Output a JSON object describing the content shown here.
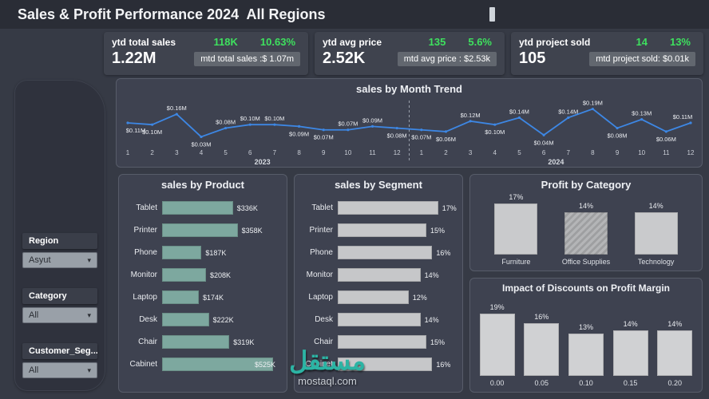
{
  "icons": {
    "chevron_down": "▾"
  },
  "header": {
    "title": "Sales & Profit Performance 2024  All Regions",
    "years": [
      "2023",
      "2024"
    ]
  },
  "kpis": [
    {
      "title": "ytd total sales",
      "delta_value": "118K",
      "delta_pct": "10.63%",
      "main": "1.22M",
      "mtd": "mtd total sales :$ 1.07m"
    },
    {
      "title": "ytd avg price",
      "delta_value": "135",
      "delta_pct": "5.6%",
      "main": "2.52K",
      "mtd": "mtd avg price : $2.53k"
    },
    {
      "title": "ytd project sold",
      "delta_value": "14",
      "delta_pct": "13%",
      "main": "105",
      "mtd": "mtd project sold: $0.01k"
    }
  ],
  "filters": [
    {
      "label": "Region",
      "value": "Asyut"
    },
    {
      "label": "Category",
      "value": "All"
    },
    {
      "label": "Customer_Seg...",
      "value": "All"
    }
  ],
  "watermark": {
    "logo": "مستقل",
    "site": "mostaql.com"
  },
  "chart_data": [
    {
      "type": "line",
      "title": "sales by Month Trend",
      "x": [
        1,
        2,
        3,
        4,
        5,
        6,
        7,
        8,
        9,
        10,
        11,
        12,
        1,
        2,
        3,
        4,
        5,
        6,
        7,
        8,
        9,
        10,
        11,
        12
      ],
      "year_groups": [
        "2023",
        "2024"
      ],
      "series": [
        {
          "name": "sales",
          "values": [
            0.11,
            0.1,
            0.16,
            0.03,
            0.08,
            0.1,
            0.1,
            0.09,
            0.07,
            0.07,
            0.09,
            0.08,
            0.07,
            0.06,
            0.12,
            0.1,
            0.14,
            0.04,
            0.14,
            0.19,
            0.08,
            0.13,
            0.06,
            0.11
          ]
        }
      ],
      "labels": [
        "$0.11M",
        "$0.10M",
        "$0.16M",
        "$0.03M",
        "$0.08M",
        "$0.10M",
        "$0.10M",
        "$0.09M",
        "$0.07M",
        "$0.07M",
        "$0.09M",
        "$0.08M",
        "$0.07M",
        "$0.06M",
        "$0.12M",
        "$0.10M",
        "$0.14M",
        "$0.04M",
        "$0.14M",
        "$0.19M",
        "$0.08M",
        "$0.13M",
        "$0.06M",
        "$0.11M"
      ],
      "ylim": [
        0,
        0.22
      ],
      "grid": false,
      "line_color": "#3d87e4"
    },
    {
      "type": "bar",
      "orientation": "horizontal",
      "title": "sales by Product",
      "categories": [
        "Tablet",
        "Printer",
        "Phone",
        "Monitor",
        "Laptop",
        "Desk",
        "Chair",
        "Cabinet"
      ],
      "values": [
        336,
        358,
        187,
        208,
        174,
        222,
        319,
        525
      ],
      "labels": [
        "$336K",
        "$358K",
        "$187K",
        "$208K",
        "$174K",
        "$222K",
        "$319K",
        "$525K"
      ],
      "xlim": [
        0,
        560
      ],
      "bar_color": "#7da89f"
    },
    {
      "type": "bar",
      "orientation": "horizontal",
      "title": "sales by Segment",
      "categories": [
        "Tablet",
        "Printer",
        "Phone",
        "Monitor",
        "Laptop",
        "Desk",
        "Chair",
        "Cabinet"
      ],
      "values": [
        17,
        15,
        16,
        14,
        12,
        14,
        15,
        16
      ],
      "labels": [
        "17%",
        "15%",
        "16%",
        "14%",
        "12%",
        "14%",
        "15%",
        "16%"
      ],
      "xlim": [
        0,
        20
      ],
      "bar_color": "#c6c7c9"
    },
    {
      "type": "bar",
      "orientation": "vertical",
      "title": "Profit by Category",
      "categories": [
        "Furniture",
        "Office Supplies",
        "Technology"
      ],
      "values": [
        17,
        14,
        14
      ],
      "labels": [
        "17%",
        "14%",
        "14%"
      ],
      "ylim": [
        0,
        20
      ],
      "bar_color": "#c9cacc",
      "hatched_index": 1
    },
    {
      "type": "bar",
      "orientation": "vertical",
      "title": "Impact of Discounts on Profit Margin",
      "categories": [
        "0.00",
        "0.05",
        "0.10",
        "0.15",
        "0.20"
      ],
      "values": [
        19,
        16,
        13,
        14,
        14
      ],
      "labels": [
        "19%",
        "16%",
        "13%",
        "14%",
        "14%"
      ],
      "ylim": [
        0,
        21
      ],
      "bar_color": "#d0d1d3"
    }
  ]
}
